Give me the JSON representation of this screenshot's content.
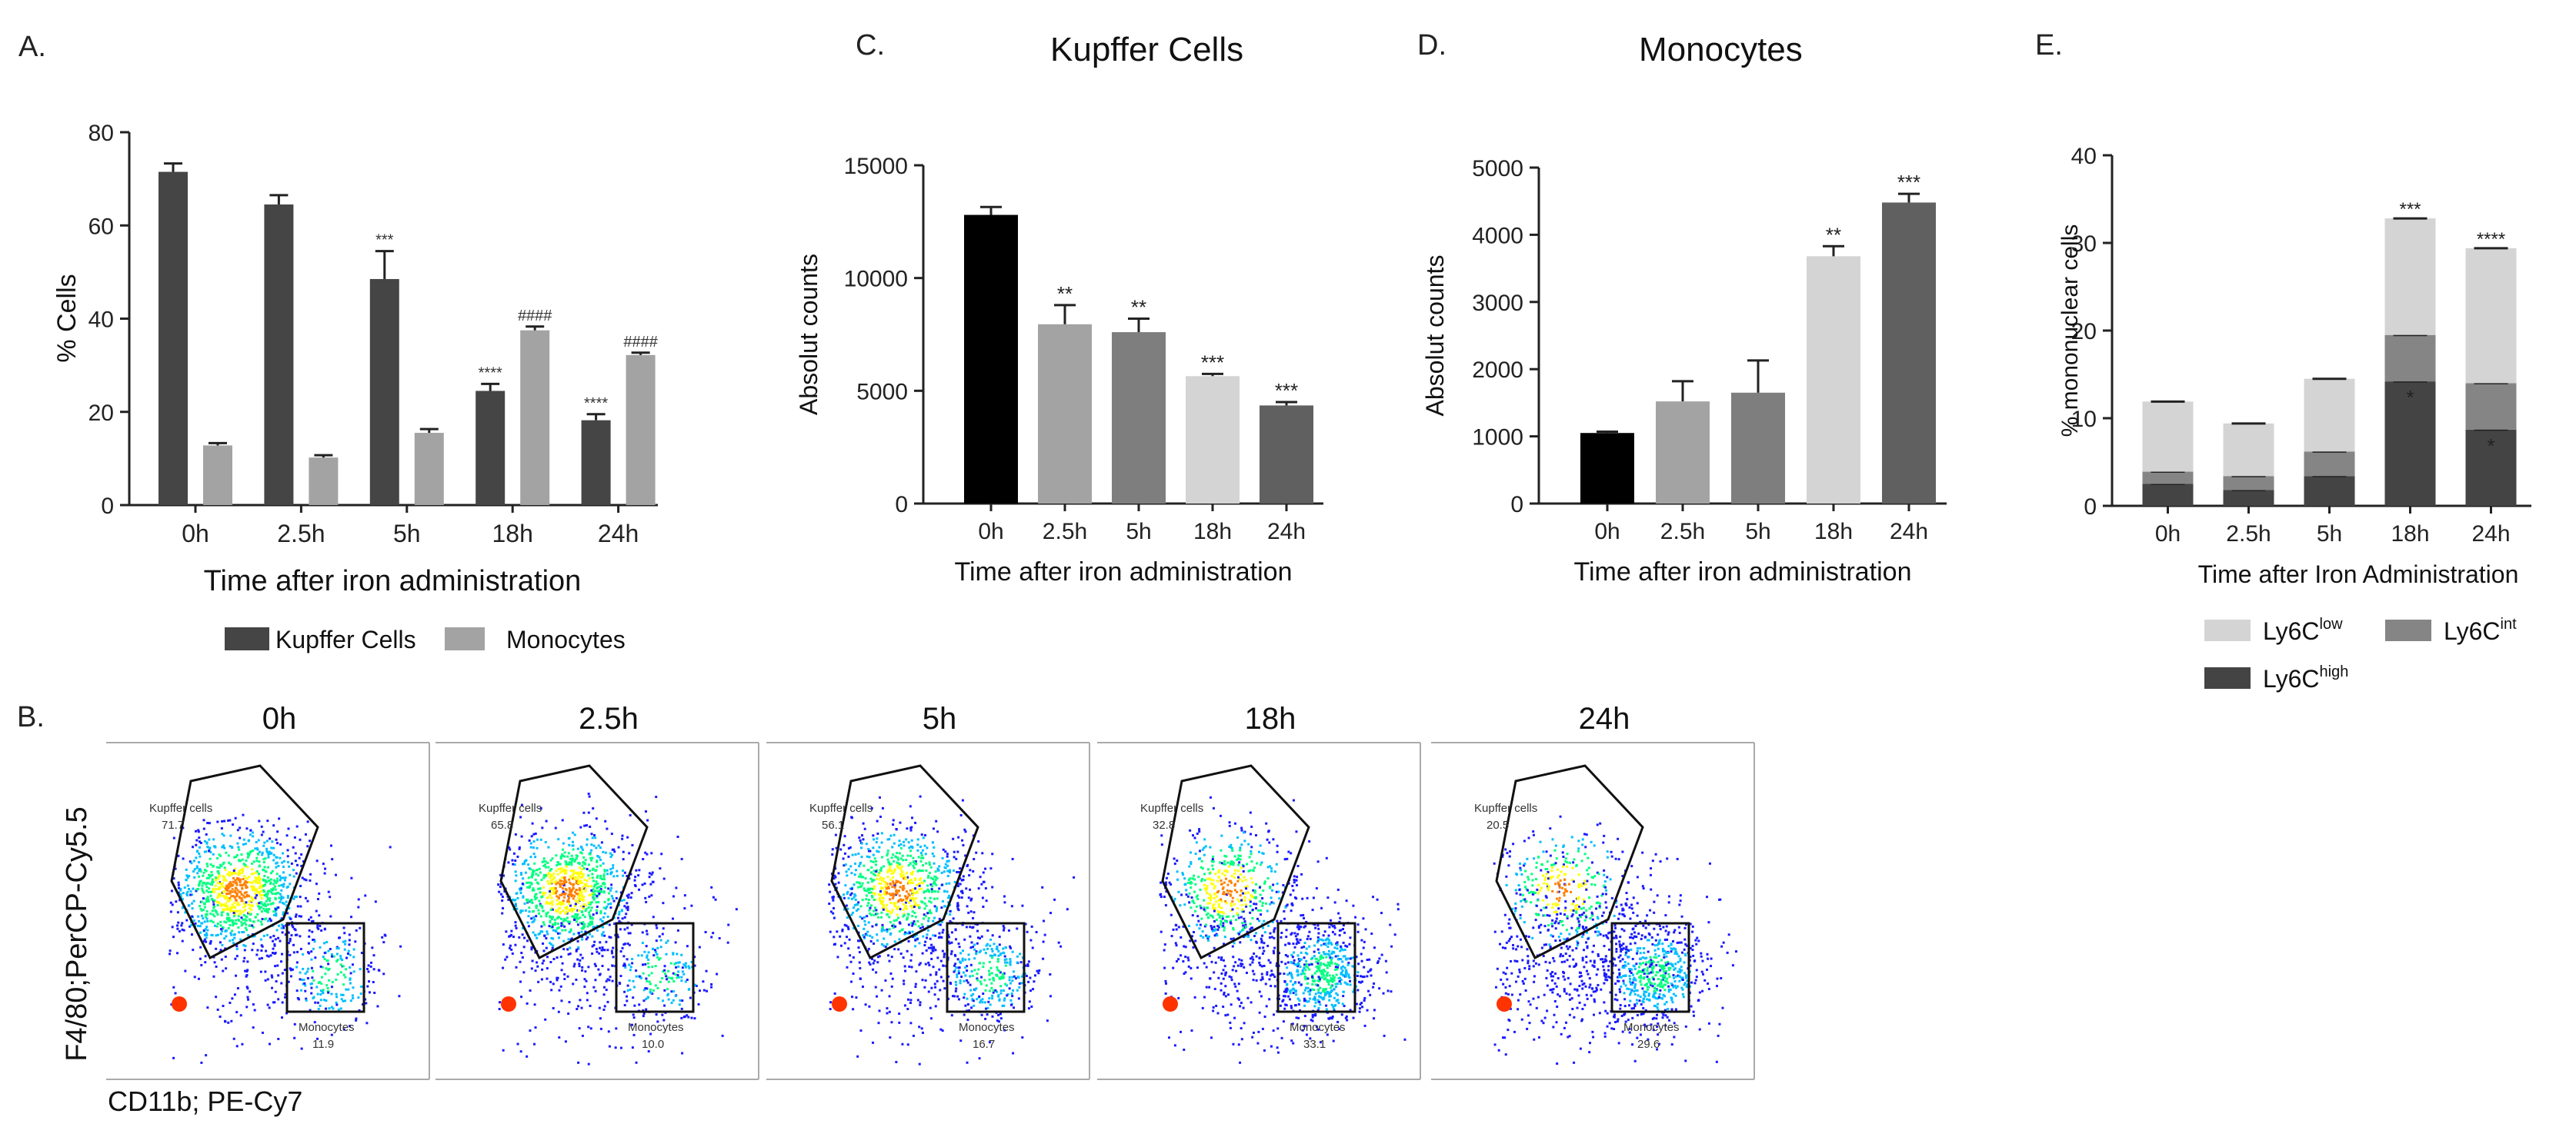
{
  "colors": {
    "kupffer": "#454545",
    "monocytes": "#a3a3a3",
    "black": "#000000",
    "grey1": "#a3a3a3",
    "grey2": "#7e7e7e",
    "grey3": "#d4d4d4",
    "grey4": "#606060",
    "ly6c_low": "#d4d4d4",
    "ly6c_int": "#858585",
    "ly6c_high": "#444444"
  },
  "chart_data": [
    {
      "id": "A",
      "panel_label": "A.",
      "type": "bar",
      "title": "",
      "xlabel": "Time after iron administration",
      "ylabel": "% Cells",
      "ylim": [
        0,
        80
      ],
      "yticks": [
        "0",
        "20",
        "40",
        "60",
        "80"
      ],
      "categories": [
        "0h",
        "2.5h",
        "5h",
        "18h",
        "24h"
      ],
      "series": [
        {
          "name": "Kupffer Cells",
          "values": [
            71.5,
            64.5,
            48.5,
            24.5,
            18.2
          ],
          "errors": [
            1.8,
            2.0,
            6.0,
            1.5,
            1.3
          ],
          "sig": [
            "",
            "",
            "***",
            "****",
            "****"
          ]
        },
        {
          "name": "Monocytes",
          "values": [
            12.8,
            10.2,
            15.5,
            37.5,
            32.2
          ],
          "errors": [
            0.5,
            0.5,
            0.8,
            0.8,
            0.5
          ],
          "sig": [
            "",
            "",
            "",
            "####",
            "####"
          ]
        }
      ],
      "legend": [
        "Kupffer Cells",
        "Monocytes"
      ]
    },
    {
      "id": "C",
      "panel_label": "C.",
      "type": "bar",
      "title": "Kupffer Cells",
      "xlabel": "Time after iron administration",
      "ylabel": "Absolut counts",
      "ylim": [
        0,
        15000
      ],
      "yticks": [
        "0",
        "5000",
        "10000",
        "15000"
      ],
      "categories": [
        "0h",
        "2.5h",
        "5h",
        "18h",
        "24h"
      ],
      "values": [
        12800,
        7950,
        7600,
        5650,
        4350
      ],
      "errors": [
        350,
        850,
        600,
        100,
        150
      ],
      "sig": [
        "",
        "**",
        "**",
        "***",
        "***"
      ]
    },
    {
      "id": "D",
      "panel_label": "D.",
      "type": "bar",
      "title": "Monocytes",
      "xlabel": "Time after iron administration",
      "ylabel": "Absolut counts",
      "ylim": [
        0,
        5000
      ],
      "yticks": [
        "0",
        "1000",
        "2000",
        "3000",
        "4000",
        "5000"
      ],
      "categories": [
        "0h",
        "2.5h",
        "5h",
        "18h",
        "24h"
      ],
      "values": [
        1050,
        1520,
        1650,
        3680,
        4480
      ],
      "errors": [
        20,
        300,
        480,
        150,
        130
      ],
      "sig": [
        "",
        "",
        "",
        "**",
        "***"
      ]
    },
    {
      "id": "E",
      "panel_label": "E.",
      "type": "bar",
      "stacked": true,
      "title": "",
      "xlabel": "Time after Iron Administration",
      "ylabel": "% mononuclear cells",
      "ylim": [
        0,
        40
      ],
      "yticks": [
        "0",
        "10",
        "20",
        "30",
        "40"
      ],
      "categories": [
        "0h",
        "2.5h",
        "5h",
        "18h",
        "24h"
      ],
      "series": [
        {
          "name": "Ly6C high",
          "values": [
            2.5,
            1.8,
            3.4,
            14.2,
            8.7
          ],
          "sig": [
            "",
            "",
            "",
            "*",
            "*"
          ]
        },
        {
          "name": "Ly6C int",
          "values": [
            1.4,
            1.6,
            2.8,
            5.3,
            5.3
          ]
        },
        {
          "name": "Ly6C low",
          "values": [
            8.0,
            6.0,
            8.3,
            13.3,
            15.4
          ]
        }
      ],
      "total_sig": [
        "",
        "",
        "",
        "***",
        "****"
      ],
      "legend": [
        {
          "base": "Ly6C",
          "sup": "low"
        },
        {
          "base": "Ly6C",
          "sup": "int"
        },
        {
          "base": "Ly6C",
          "sup": "high"
        }
      ]
    }
  ],
  "flow": {
    "panel_label": "B.",
    "y_axis_label": "F4/80;PerCP-Cy5.5",
    "x_axis_label": "CD11b; PE-Cy7",
    "plots": [
      {
        "time": "0h",
        "kupffer_label": "Kupffer cells",
        "kupffer_pct": "71.7",
        "mono_label": "Monocytes",
        "mono_pct": "11.9"
      },
      {
        "time": "2.5h",
        "kupffer_label": "Kupffer cells",
        "kupffer_pct": "65.8",
        "mono_label": "Monocytes",
        "mono_pct": "10.0"
      },
      {
        "time": "5h",
        "kupffer_label": "Kupffer cells",
        "kupffer_pct": "56.1",
        "mono_label": "Monocytes",
        "mono_pct": "16.7"
      },
      {
        "time": "18h",
        "kupffer_label": "Kupffer cells",
        "kupffer_pct": "32.8",
        "mono_label": "Monocytes",
        "mono_pct": "33.1"
      },
      {
        "time": "24h",
        "kupffer_label": "Kupffer cells",
        "kupffer_pct": "20.5",
        "mono_label": "Monocytes",
        "mono_pct": "29.6"
      }
    ]
  }
}
